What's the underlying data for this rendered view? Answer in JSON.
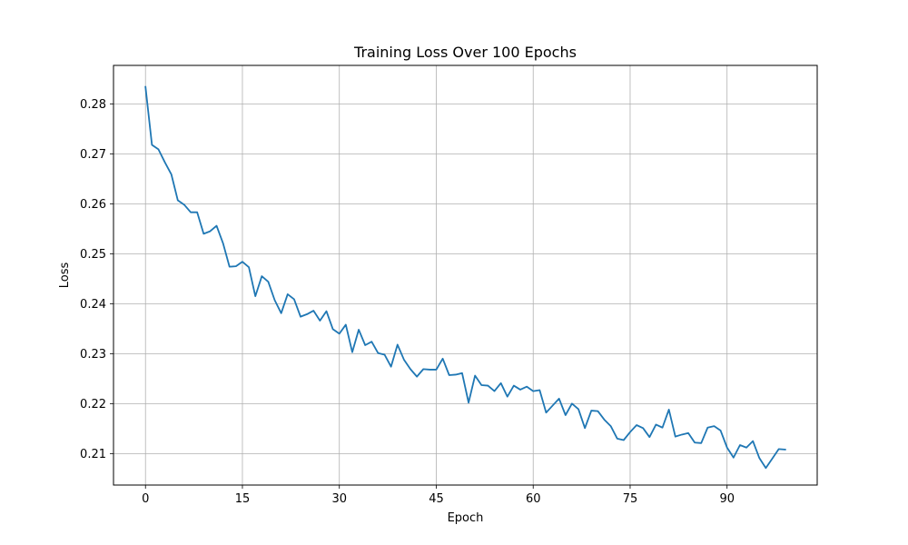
{
  "chart_data": {
    "type": "line",
    "title": "Training Loss Over 100 Epochs",
    "xlabel": "Epoch",
    "ylabel": "Loss",
    "grid": true,
    "xlim": [
      -4.95,
      103.95
    ],
    "ylim": [
      0.2037,
      0.2877
    ],
    "xticks": [
      0,
      15,
      30,
      45,
      60,
      75,
      90
    ],
    "yticks": [
      0.21,
      0.22,
      0.23,
      0.24,
      0.25,
      0.26,
      0.27,
      0.28
    ],
    "line_color": "#1f77b4",
    "series": [
      {
        "x": [
          0,
          1,
          2,
          3,
          4,
          5,
          6,
          7,
          8,
          9,
          10,
          11,
          12,
          13,
          14,
          15,
          16,
          17,
          18,
          19,
          20,
          21,
          22,
          23,
          24,
          25,
          26,
          27,
          28,
          29,
          30,
          31,
          32,
          33,
          34,
          35,
          36,
          37,
          38,
          39,
          40,
          41,
          42,
          43,
          44,
          45,
          46,
          47,
          48,
          49,
          50,
          51,
          52,
          53,
          54,
          55,
          56,
          57,
          58,
          59,
          60,
          61,
          62,
          63,
          64,
          65,
          66,
          67,
          68,
          69,
          70,
          71,
          72,
          73,
          74,
          75,
          76,
          77,
          78,
          79,
          80,
          81,
          82,
          83,
          84,
          85,
          86,
          87,
          88,
          89,
          90,
          91,
          92,
          93,
          94,
          95,
          96,
          97,
          98,
          99
        ],
        "values": [
          0.2834,
          0.2718,
          0.2709,
          0.2683,
          0.2659,
          0.2607,
          0.2598,
          0.2583,
          0.2583,
          0.254,
          0.2545,
          0.2556,
          0.2521,
          0.2474,
          0.2475,
          0.2484,
          0.2473,
          0.2415,
          0.2455,
          0.2444,
          0.2407,
          0.2381,
          0.2419,
          0.2409,
          0.2374,
          0.2379,
          0.2386,
          0.2366,
          0.2385,
          0.2349,
          0.234,
          0.2358,
          0.2303,
          0.2348,
          0.2317,
          0.2324,
          0.2301,
          0.2298,
          0.2274,
          0.2318,
          0.2288,
          0.2269,
          0.2254,
          0.2269,
          0.2268,
          0.2268,
          0.229,
          0.2257,
          0.2258,
          0.2261,
          0.2202,
          0.2256,
          0.2237,
          0.2236,
          0.2225,
          0.2241,
          0.2214,
          0.2236,
          0.2228,
          0.2234,
          0.2225,
          0.2227,
          0.2182,
          0.2196,
          0.221,
          0.2177,
          0.22,
          0.2189,
          0.2151,
          0.2186,
          0.2185,
          0.2168,
          0.2155,
          0.213,
          0.2127,
          0.2143,
          0.2157,
          0.2151,
          0.2133,
          0.2158,
          0.2152,
          0.2188,
          0.2134,
          0.2138,
          0.2141,
          0.2122,
          0.2121,
          0.2152,
          0.2155,
          0.2146,
          0.2112,
          0.2092,
          0.2117,
          0.2112,
          0.2125,
          0.2091,
          0.2071,
          0.209,
          0.2109,
          0.2108
        ]
      }
    ]
  }
}
